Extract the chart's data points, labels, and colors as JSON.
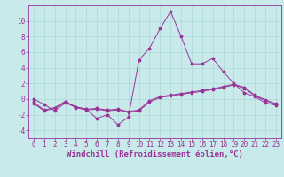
{
  "xlabel": "Windchill (Refroidissement éolien,°C)",
  "background_color": "#c8eaea",
  "grid_color": "#a8d4d4",
  "line_color": "#993399",
  "xlim": [
    -0.5,
    23.5
  ],
  "ylim": [
    -5.0,
    12.0
  ],
  "xticks": [
    0,
    1,
    2,
    3,
    4,
    5,
    6,
    7,
    8,
    9,
    10,
    11,
    12,
    13,
    14,
    15,
    16,
    17,
    18,
    19,
    20,
    21,
    22,
    23
  ],
  "yticks": [
    -4,
    -2,
    0,
    2,
    4,
    6,
    8,
    10
  ],
  "series1": [
    0.0,
    -0.7,
    -1.5,
    -0.5,
    -1.0,
    -1.3,
    -2.5,
    -2.0,
    -3.3,
    -2.3,
    5.0,
    6.5,
    9.0,
    11.2,
    8.0,
    4.5,
    4.5,
    5.2,
    3.5,
    2.0,
    0.8,
    0.3,
    -0.5,
    -0.8
  ],
  "series2": [
    -0.6,
    -1.5,
    -1.2,
    -0.4,
    -1.1,
    -1.4,
    -1.3,
    -1.5,
    -1.4,
    -1.7,
    -1.5,
    -0.4,
    0.2,
    0.4,
    0.6,
    0.8,
    1.0,
    1.2,
    1.5,
    1.8,
    1.4,
    0.4,
    -0.2,
    -0.7
  ],
  "series3": [
    -0.4,
    -1.4,
    -1.1,
    -0.3,
    -1.0,
    -1.3,
    -1.2,
    -1.4,
    -1.3,
    -1.6,
    -1.4,
    -0.2,
    0.3,
    0.5,
    0.7,
    0.9,
    1.1,
    1.3,
    1.6,
    1.9,
    1.5,
    0.5,
    -0.1,
    -0.6
  ],
  "xlabel_fontsize": 6.5,
  "tick_fontsize": 5.5,
  "figsize": [
    3.2,
    2.0
  ],
  "dpi": 100
}
